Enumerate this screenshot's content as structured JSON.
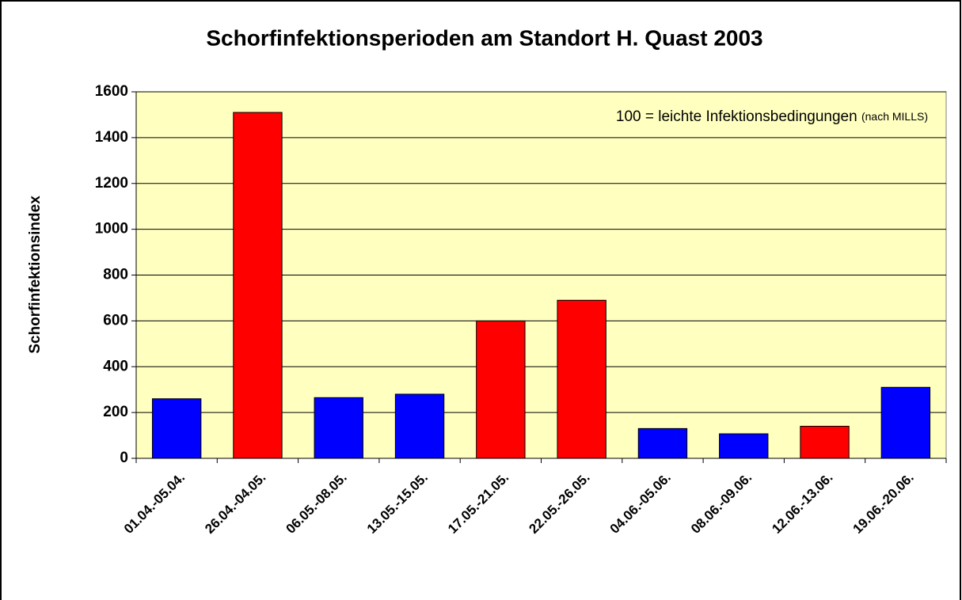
{
  "chart_data": {
    "type": "bar",
    "title": "Schorfinfektionsperioden am Standort H. Quast 2003",
    "y_label": "Schorfinfektionsindex",
    "annotation": {
      "text": "100 = leichte Infektionsbedingungen",
      "note": "(nach MILLS)"
    },
    "categories": [
      "01.04.-05.04.",
      "26.04.-04.05.",
      "06.05.-08.05.",
      "13.05.-15.05.",
      "17.05.-21.05.",
      "22.05.-26.05.",
      "04.06.-05.06.",
      "08.06.-09.06.",
      "12.06.-13.06.",
      "19.06.-20.06."
    ],
    "values": [
      260,
      1510,
      265,
      280,
      600,
      690,
      130,
      107,
      140,
      310
    ],
    "colors": [
      "#0000ff",
      "#ff0000",
      "#0000ff",
      "#0000ff",
      "#ff0000",
      "#ff0000",
      "#0000ff",
      "#0000ff",
      "#ff0000",
      "#0000ff"
    ],
    "ylim": [
      0,
      1600
    ],
    "yticks": [
      0,
      200,
      400,
      600,
      800,
      1000,
      1200,
      1400,
      1600
    ],
    "grid": true
  }
}
